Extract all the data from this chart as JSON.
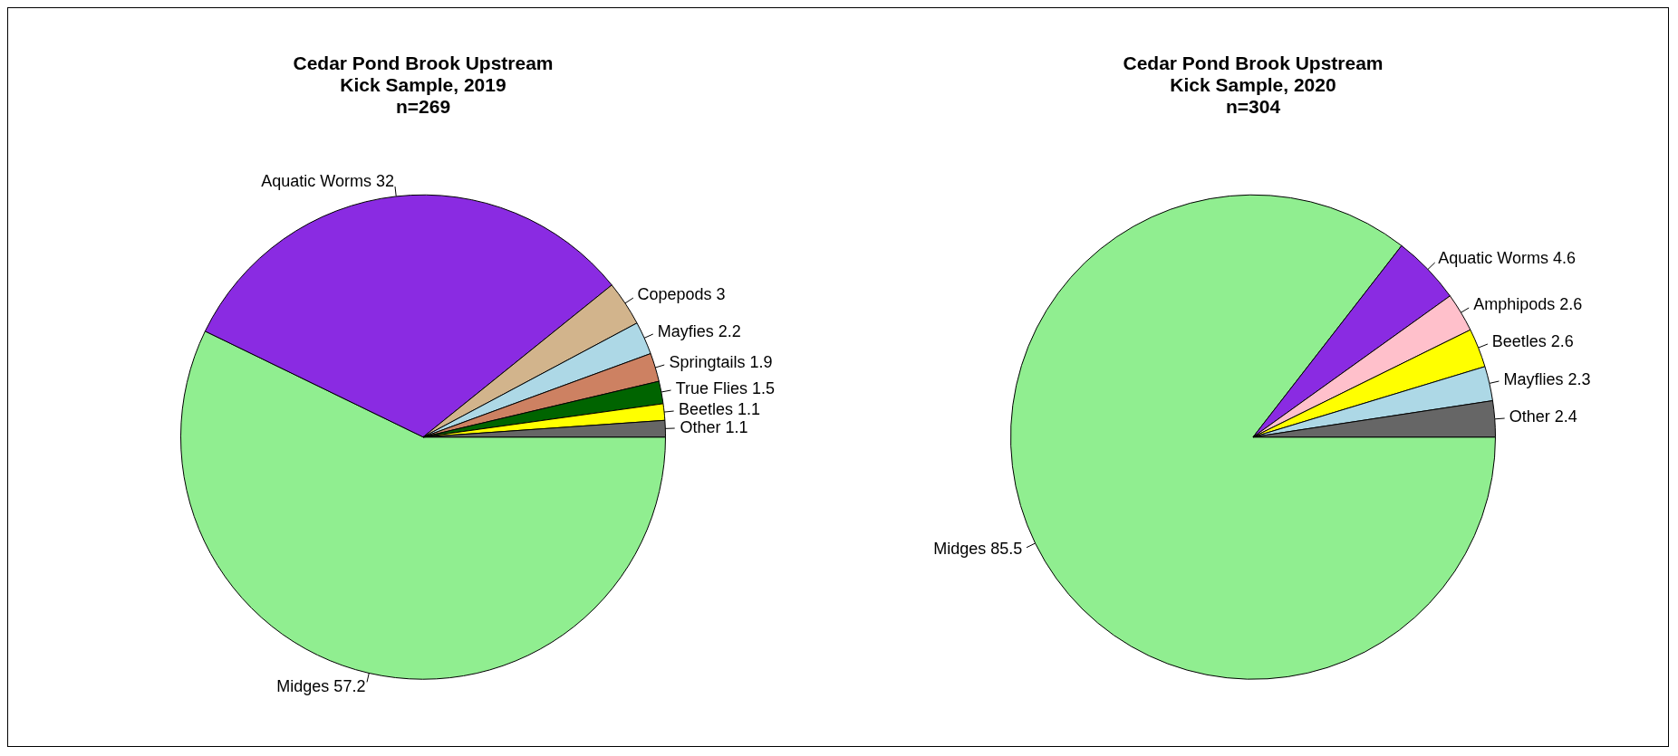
{
  "chart_data": [
    {
      "type": "pie",
      "title": "Cedar Pond Brook Upstream\nKick Sample, 2019\nn=269",
      "categories": [
        "Midges",
        "Aquatic Worms",
        "Copepods",
        "Mayfies",
        "Springtails",
        "True Flies",
        "Beetles",
        "Other"
      ],
      "values": [
        57.2,
        32,
        3,
        2.2,
        1.9,
        1.5,
        1.1,
        1.1
      ],
      "colors": [
        "#90ee90",
        "#8a2be2",
        "#d2b48c",
        "#add8e6",
        "#cd8162",
        "#006400",
        "#ffff00",
        "#666666"
      ],
      "data_labels": true
    },
    {
      "type": "pie",
      "title": "Cedar Pond Brook Upstream\nKick Sample, 2020\nn=304",
      "categories": [
        "Midges",
        "Aquatic Worms",
        "Amphipods",
        "Beetles",
        "Mayflies",
        "Other"
      ],
      "values": [
        85.5,
        4.6,
        2.6,
        2.6,
        2.3,
        2.4
      ],
      "colors": [
        "#90ee90",
        "#8a2be2",
        "#ffc0cb",
        "#ffff00",
        "#add8e6",
        "#666666"
      ],
      "data_labels": true
    }
  ]
}
